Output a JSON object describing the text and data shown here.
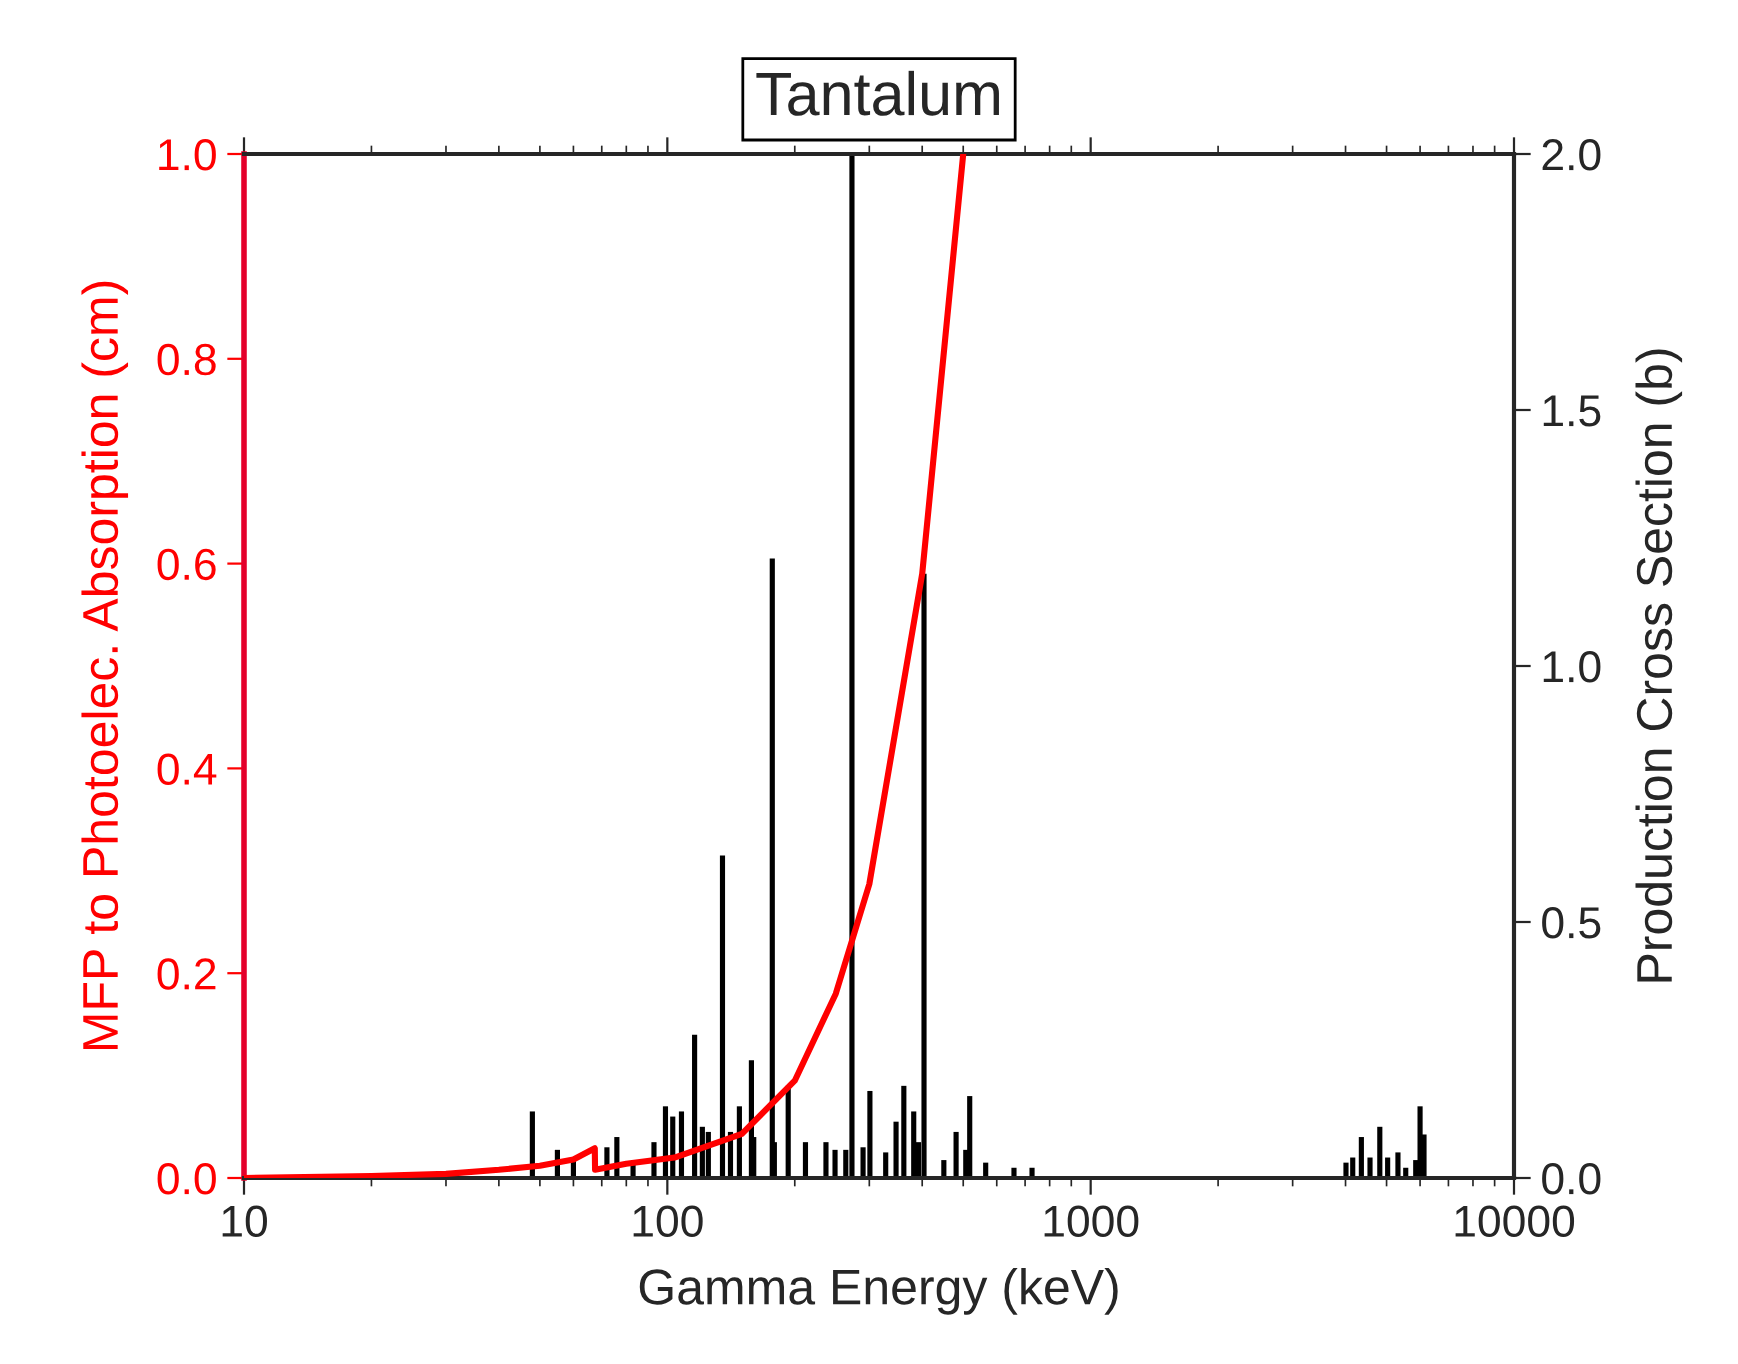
{
  "chart_data": {
    "type": "line",
    "title": "Tantalum",
    "xlabel": "Gamma Energy (keV)",
    "ylabel": "MFP to Photoelec. Absorption (cm)",
    "y2label": "Production Cross Section (b)",
    "log": "x",
    "xlim": [
      10,
      10000
    ],
    "xticks": [
      10,
      100,
      1000,
      10000
    ],
    "ylim": [
      0,
      1.0
    ],
    "yticks": [
      {
        "value": 0,
        "label": "0.0"
      },
      0.2,
      0.4,
      0.6,
      0.8,
      {
        "value": 1,
        "label": "1.0"
      }
    ],
    "y2lim": [
      0,
      2.0
    ],
    "y2ticks": [
      {
        "value": 0,
        "label": "0.0"
      },
      0.5,
      {
        "value": 1,
        "label": "1.0"
      },
      1.5,
      {
        "value": 2,
        "label": "2.0"
      }
    ],
    "grid": false,
    "legend": false,
    "series": [
      {
        "type": "bar",
        "axis": "y2",
        "color": "#000000",
        "x": [
          48,
          55,
          60,
          72,
          76,
          83,
          93,
          99,
          103,
          108,
          116,
          121,
          125,
          135,
          141,
          148,
          158,
          160,
          177,
          179,
          193,
          212,
          237,
          249,
          264,
          273,
          290,
          301,
          328,
          347,
          362,
          382,
          392,
          404,
          450,
          481,
          507,
          518,
          565,
          659,
          727,
          4010,
          4160,
          4360,
          4570,
          4820,
          5030,
          5320,
          5550,
          5860,
          6000,
          6130
        ],
        "values": [
          0.13,
          0.055,
          0.04,
          0.06,
          0.08,
          0.03,
          0.07,
          0.14,
          0.12,
          0.13,
          0.28,
          0.1,
          0.09,
          0.63,
          0.09,
          0.14,
          0.23,
          0.08,
          1.21,
          0.07,
          0.18,
          0.07,
          0.07,
          0.055,
          0.055,
          2.0,
          0.06,
          0.17,
          0.05,
          0.11,
          0.18,
          0.13,
          0.07,
          1.18,
          0.035,
          0.09,
          0.055,
          0.16,
          0.03,
          0.02,
          0.02,
          0.03,
          0.04,
          0.08,
          0.04,
          0.1,
          0.04,
          0.05,
          0.02,
          0.035,
          0.14,
          0.085
        ]
      },
      {
        "axis": "y",
        "color": "#ff0000",
        "line_style": "solid",
        "marker": "none",
        "x": [
          10,
          20,
          30,
          40,
          50,
          60,
          67.4,
          67.5,
          80,
          104,
          150,
          200,
          250,
          300,
          400,
          500
        ],
        "values": [
          0.0,
          0.002,
          0.004,
          0.008,
          0.012,
          0.018,
          0.029,
          0.008,
          0.014,
          0.02,
          0.043,
          0.095,
          0.18,
          0.287,
          0.59,
          1.0
        ]
      }
    ]
  }
}
